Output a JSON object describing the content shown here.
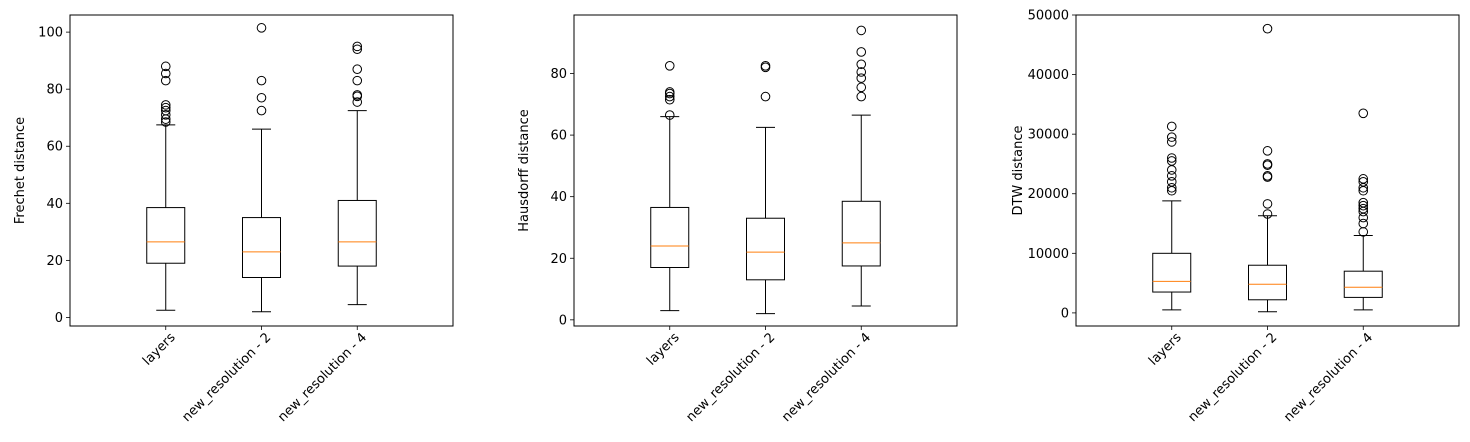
{
  "chart_data": [
    {
      "type": "box",
      "ylabel": "Frechet distance",
      "ylim": [
        -3,
        106
      ],
      "yticks": [
        0,
        20,
        40,
        60,
        80,
        100
      ],
      "categories": [
        "layers",
        "new_resolution - 2",
        "new_resolution - 4"
      ],
      "boxes": [
        {
          "whisker_low": 2.5,
          "q1": 19,
          "median": 26.5,
          "q3": 38.5,
          "whisker_high": 67.5,
          "outliers": [
            68.5,
            69.5,
            71,
            72.5,
            73.5,
            74.5,
            83,
            85.5,
            88
          ]
        },
        {
          "whisker_low": 2,
          "q1": 14,
          "median": 23,
          "q3": 35,
          "whisker_high": 66,
          "outliers": [
            72.5,
            77,
            83,
            101.5
          ]
        },
        {
          "whisker_low": 4.5,
          "q1": 18,
          "median": 26.5,
          "q3": 41,
          "whisker_high": 72.5,
          "outliers": [
            75.5,
            77.5,
            78,
            83,
            87,
            94,
            95
          ]
        }
      ]
    },
    {
      "type": "box",
      "ylabel": "Hausdorff distance",
      "ylim": [
        -2,
        99
      ],
      "yticks": [
        0,
        20,
        40,
        60,
        80
      ],
      "categories": [
        "layers",
        "new_resolution - 2",
        "new_resolution - 4"
      ],
      "boxes": [
        {
          "whisker_low": 3,
          "q1": 17,
          "median": 24,
          "q3": 36.5,
          "whisker_high": 66,
          "outliers": [
            66.5,
            71.5,
            72.5,
            73.5,
            74,
            82.5
          ]
        },
        {
          "whisker_low": 2,
          "q1": 13,
          "median": 22,
          "q3": 33,
          "whisker_high": 62.5,
          "outliers": [
            72.5,
            82,
            82.5
          ]
        },
        {
          "whisker_low": 4.5,
          "q1": 17.5,
          "median": 25,
          "q3": 38.5,
          "whisker_high": 66.5,
          "outliers": [
            72.5,
            75.5,
            78.5,
            80.5,
            83,
            87,
            94
          ]
        }
      ]
    },
    {
      "type": "box",
      "ylabel": "DTW distance",
      "ylim": [
        -2200,
        50000
      ],
      "yticks": [
        0,
        10000,
        20000,
        30000,
        40000,
        50000
      ],
      "categories": [
        "layers",
        "new_resolution - 2",
        "new_resolution - 4"
      ],
      "boxes": [
        {
          "whisker_low": 500,
          "q1": 3500,
          "median": 5300,
          "q3": 10000,
          "whisker_high": 18800,
          "outliers": [
            20500,
            21000,
            22000,
            23000,
            24000,
            25500,
            26000,
            28700,
            29500,
            31300
          ]
        },
        {
          "whisker_low": 200,
          "q1": 2200,
          "median": 4800,
          "q3": 8000,
          "whisker_high": 16300,
          "outliers": [
            16600,
            18300,
            22800,
            23000,
            24800,
            25000,
            27200,
            47700
          ]
        },
        {
          "whisker_low": 500,
          "q1": 2600,
          "median": 4300,
          "q3": 7000,
          "whisker_high": 13000,
          "outliers": [
            13600,
            15000,
            16000,
            17000,
            17500,
            18000,
            18500,
            20500,
            21000,
            22000,
            22500,
            33500
          ]
        }
      ]
    }
  ]
}
